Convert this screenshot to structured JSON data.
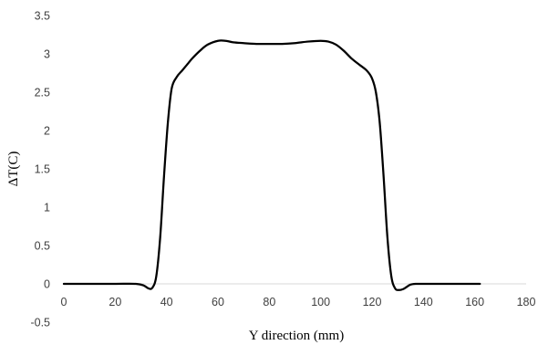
{
  "chart_data": {
    "type": "line",
    "title": "",
    "xlabel": "Y direction (mm)",
    "ylabel": "ΔT(C)",
    "xlim": [
      0,
      180
    ],
    "ylim": [
      -0.5,
      3.5
    ],
    "xticks": [
      "0",
      "20",
      "40",
      "60",
      "80",
      "100",
      "120",
      "140",
      "160",
      "180"
    ],
    "yticks": [
      "-0.5",
      "0",
      "0.5",
      "1",
      "1.5",
      "2",
      "2.5",
      "3",
      "3.5"
    ],
    "grid": false,
    "legend": "none",
    "line_color": "#000000",
    "series": [
      {
        "x": [
          0,
          10,
          20,
          28,
          31,
          33,
          34.5,
          36,
          37.5,
          39,
          40.5,
          42,
          44,
          46,
          48,
          50,
          53,
          56,
          60,
          63,
          66,
          70,
          75,
          80,
          85,
          90,
          95,
          100,
          103,
          106,
          109,
          112,
          115,
          118,
          120,
          121.5,
          123,
          124.5,
          126,
          127.5,
          129,
          130.5,
          132,
          133.5,
          135,
          137,
          140,
          150,
          162
        ],
        "y": [
          0,
          0,
          0,
          0,
          -0.02,
          -0.06,
          -0.05,
          0.1,
          0.6,
          1.4,
          2.1,
          2.55,
          2.7,
          2.78,
          2.86,
          2.94,
          3.04,
          3.12,
          3.17,
          3.17,
          3.15,
          3.14,
          3.13,
          3.13,
          3.13,
          3.14,
          3.16,
          3.17,
          3.16,
          3.12,
          3.04,
          2.94,
          2.86,
          2.78,
          2.68,
          2.5,
          2.1,
          1.4,
          0.6,
          0.1,
          -0.06,
          -0.08,
          -0.07,
          -0.04,
          -0.01,
          0,
          0,
          0,
          0
        ]
      }
    ]
  }
}
